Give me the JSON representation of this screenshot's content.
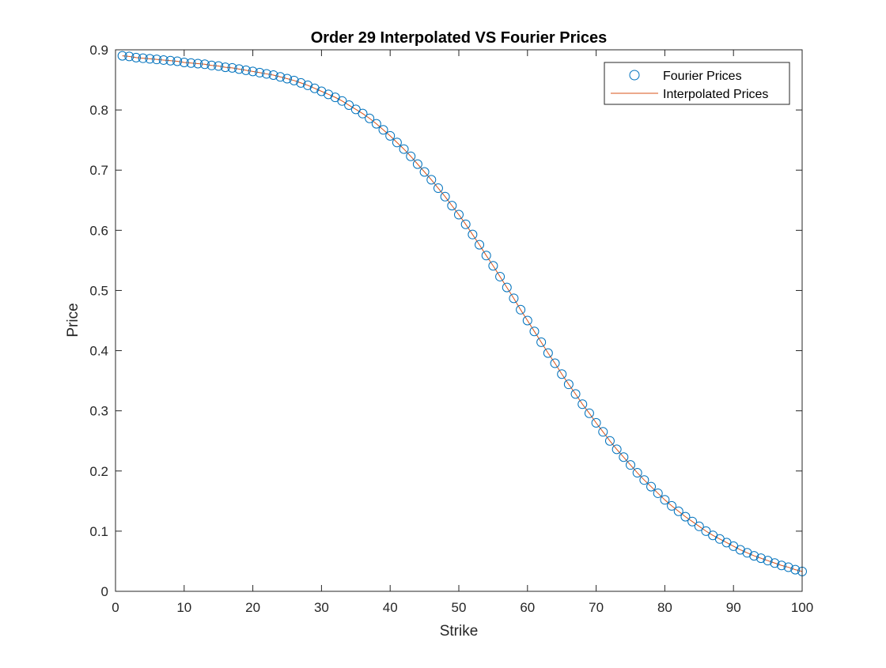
{
  "chart_data": {
    "type": "line",
    "title": "Order 29 Interpolated VS Fourier Prices",
    "xlabel": "Strike",
    "ylabel": "Price",
    "xlim": [
      0,
      100
    ],
    "ylim": [
      0,
      0.9
    ],
    "xticks": [
      0,
      10,
      20,
      30,
      40,
      50,
      60,
      70,
      80,
      90,
      100
    ],
    "yticks": [
      0,
      0.1,
      0.2,
      0.3,
      0.4,
      0.5,
      0.6,
      0.7,
      0.8,
      0.9
    ],
    "grid": false,
    "legend_position": "top-right",
    "x": [
      1,
      2,
      3,
      4,
      5,
      6,
      7,
      8,
      9,
      10,
      11,
      12,
      13,
      14,
      15,
      16,
      17,
      18,
      19,
      20,
      21,
      22,
      23,
      24,
      25,
      26,
      27,
      28,
      29,
      30,
      31,
      32,
      33,
      34,
      35,
      36,
      37,
      38,
      39,
      40,
      41,
      42,
      43,
      44,
      45,
      46,
      47,
      48,
      49,
      50,
      51,
      52,
      53,
      54,
      55,
      56,
      57,
      58,
      59,
      60,
      61,
      62,
      63,
      64,
      65,
      66,
      67,
      68,
      69,
      70,
      71,
      72,
      73,
      74,
      75,
      76,
      77,
      78,
      79,
      80,
      81,
      82,
      83,
      84,
      85,
      86,
      87,
      88,
      89,
      90,
      91,
      92,
      93,
      94,
      95,
      96,
      97,
      98,
      99,
      100
    ],
    "series": [
      {
        "name": "Fourier Prices",
        "style": "markers",
        "marker": "circle",
        "color": "#0072BD",
        "values": [
          0.89,
          0.889,
          0.887,
          0.886,
          0.885,
          0.884,
          0.883,
          0.882,
          0.881,
          0.879,
          0.878,
          0.877,
          0.876,
          0.874,
          0.873,
          0.871,
          0.87,
          0.868,
          0.866,
          0.864,
          0.862,
          0.86,
          0.858,
          0.855,
          0.852,
          0.849,
          0.845,
          0.841,
          0.836,
          0.831,
          0.826,
          0.821,
          0.815,
          0.808,
          0.801,
          0.794,
          0.786,
          0.777,
          0.767,
          0.757,
          0.746,
          0.735,
          0.723,
          0.71,
          0.697,
          0.684,
          0.67,
          0.656,
          0.641,
          0.626,
          0.61,
          0.593,
          0.576,
          0.558,
          0.541,
          0.523,
          0.505,
          0.487,
          0.468,
          0.45,
          0.432,
          0.414,
          0.396,
          0.379,
          0.361,
          0.344,
          0.328,
          0.311,
          0.296,
          0.28,
          0.265,
          0.25,
          0.236,
          0.223,
          0.21,
          0.197,
          0.185,
          0.174,
          0.163,
          0.152,
          0.142,
          0.133,
          0.124,
          0.116,
          0.108,
          0.1,
          0.093,
          0.087,
          0.081,
          0.075,
          0.069,
          0.064,
          0.059,
          0.055,
          0.051,
          0.047,
          0.043,
          0.04,
          0.036,
          0.033
        ]
      },
      {
        "name": "Interpolated Prices",
        "style": "line",
        "color": "#D95319",
        "values": [
          0.89,
          0.889,
          0.887,
          0.886,
          0.885,
          0.884,
          0.883,
          0.882,
          0.881,
          0.879,
          0.878,
          0.877,
          0.876,
          0.874,
          0.873,
          0.871,
          0.87,
          0.868,
          0.866,
          0.864,
          0.862,
          0.86,
          0.858,
          0.855,
          0.852,
          0.849,
          0.845,
          0.841,
          0.836,
          0.831,
          0.826,
          0.821,
          0.815,
          0.808,
          0.801,
          0.794,
          0.786,
          0.777,
          0.767,
          0.757,
          0.746,
          0.735,
          0.723,
          0.71,
          0.697,
          0.684,
          0.67,
          0.656,
          0.641,
          0.626,
          0.61,
          0.593,
          0.576,
          0.558,
          0.541,
          0.523,
          0.505,
          0.487,
          0.468,
          0.45,
          0.432,
          0.414,
          0.396,
          0.379,
          0.361,
          0.344,
          0.328,
          0.311,
          0.296,
          0.28,
          0.265,
          0.25,
          0.236,
          0.223,
          0.21,
          0.197,
          0.185,
          0.174,
          0.163,
          0.152,
          0.142,
          0.133,
          0.124,
          0.116,
          0.108,
          0.1,
          0.093,
          0.087,
          0.081,
          0.075,
          0.069,
          0.064,
          0.059,
          0.055,
          0.051,
          0.047,
          0.043,
          0.04,
          0.036,
          0.033
        ]
      }
    ]
  }
}
